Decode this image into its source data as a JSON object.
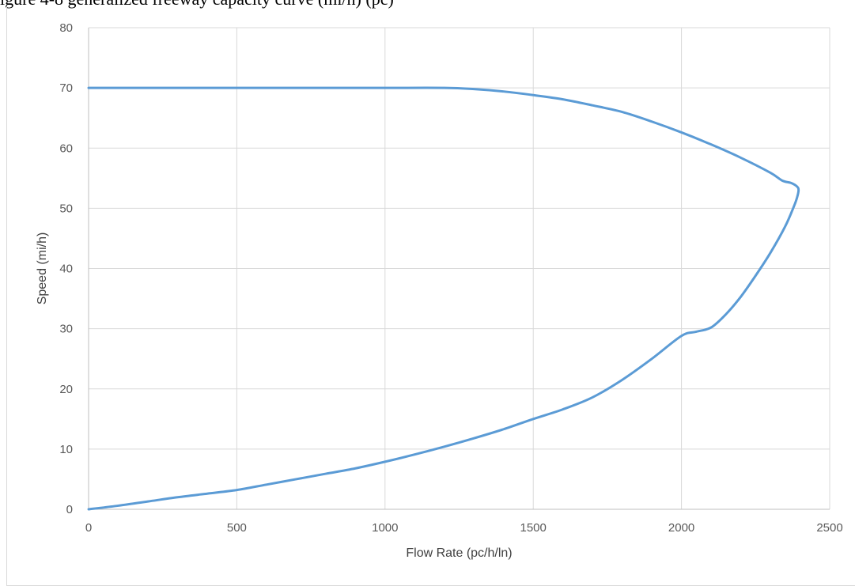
{
  "caption_fragment": "igure 4-8 generalized freeway capacity curve (mi/h) (pc)",
  "chart_data": {
    "type": "line",
    "title": "",
    "xlabel": "Flow Rate (pc/h/ln)",
    "ylabel": "Speed (mi/h)",
    "xlim": [
      0,
      2500
    ],
    "ylim": [
      0,
      80
    ],
    "xticks": [
      0,
      500,
      1000,
      1500,
      2000,
      2500
    ],
    "yticks": [
      0,
      10,
      20,
      30,
      40,
      50,
      60,
      70,
      80
    ],
    "grid": true,
    "legend": "none",
    "series": [
      {
        "color": "#5b9bd5",
        "x": [
          0,
          250,
          500,
          750,
          1000,
          1200,
          1300,
          1400,
          1500,
          1600,
          1700,
          1800,
          1900,
          2000,
          2100,
          2200,
          2300,
          2340,
          2370,
          2390,
          2395,
          2390,
          2380,
          2350,
          2300,
          2250,
          2200,
          2150,
          2100,
          2050,
          2000,
          1900,
          1800,
          1700,
          1600,
          1500,
          1400,
          1300,
          1200,
          1100,
          1000,
          900,
          800,
          700,
          600,
          500,
          400,
          300,
          200,
          100,
          0
        ],
        "y": [
          70,
          70,
          70,
          70,
          70,
          70,
          69.8,
          69.4,
          68.8,
          68.1,
          67.1,
          66.0,
          64.4,
          62.6,
          60.6,
          58.4,
          55.9,
          54.6,
          54.2,
          53.6,
          53.0,
          51.8,
          50.4,
          47.0,
          42.6,
          38.8,
          35.3,
          32.4,
          30.2,
          29.5,
          28.8,
          25.0,
          21.5,
          18.6,
          16.6,
          15.0,
          13.3,
          11.8,
          10.4,
          9.1,
          7.9,
          6.8,
          5.9,
          5.0,
          4.1,
          3.2,
          2.6,
          2.0,
          1.3,
          0.6,
          0
        ]
      }
    ]
  }
}
